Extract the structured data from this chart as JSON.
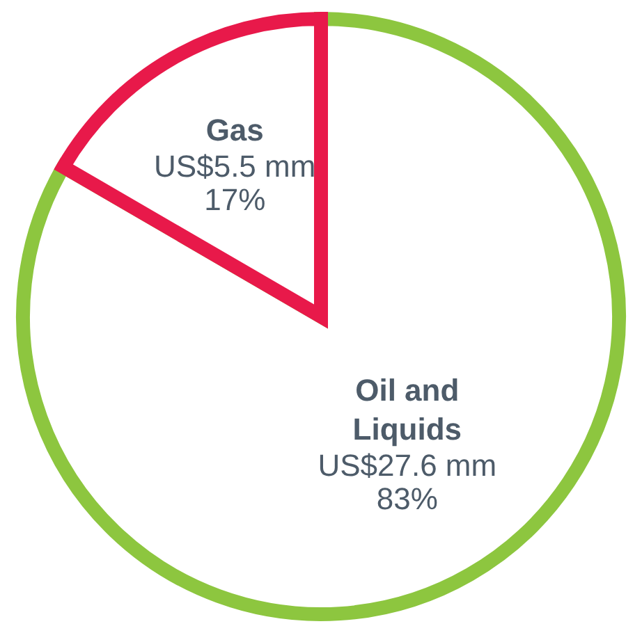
{
  "chart_data": {
    "type": "pie",
    "categories": [
      "Oil and Liquids",
      "Gas"
    ],
    "values": [
      27.6,
      5.5
    ],
    "colors": [
      "#8dc63f",
      "#e8194a"
    ],
    "value_labels": [
      "US$27.6 mm",
      "US$5.5 mm"
    ],
    "annotations": [
      "83%",
      "17%"
    ],
    "legend": false
  }
}
